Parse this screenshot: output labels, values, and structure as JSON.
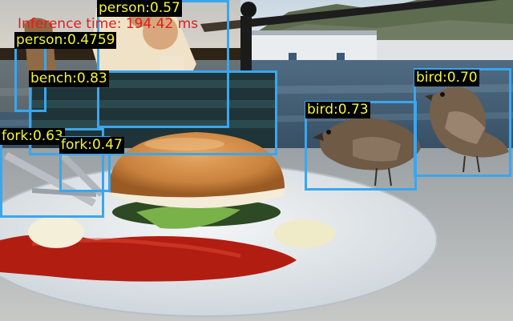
{
  "inference_time": {
    "text": "Inference time: 194.42 ms",
    "color": "#e21d1d"
  },
  "box_color": "#3aa6ee",
  "label_text_color": "#f5f535",
  "detections": [
    {
      "label": "person:0.57"
    },
    {
      "label": "person:0.4759"
    },
    {
      "label": "bench:0.83"
    },
    {
      "label": "fork:0.63"
    },
    {
      "label": "fork:0.47"
    },
    {
      "label": "bird:0.73"
    },
    {
      "label": "bird:0.70"
    }
  ]
}
